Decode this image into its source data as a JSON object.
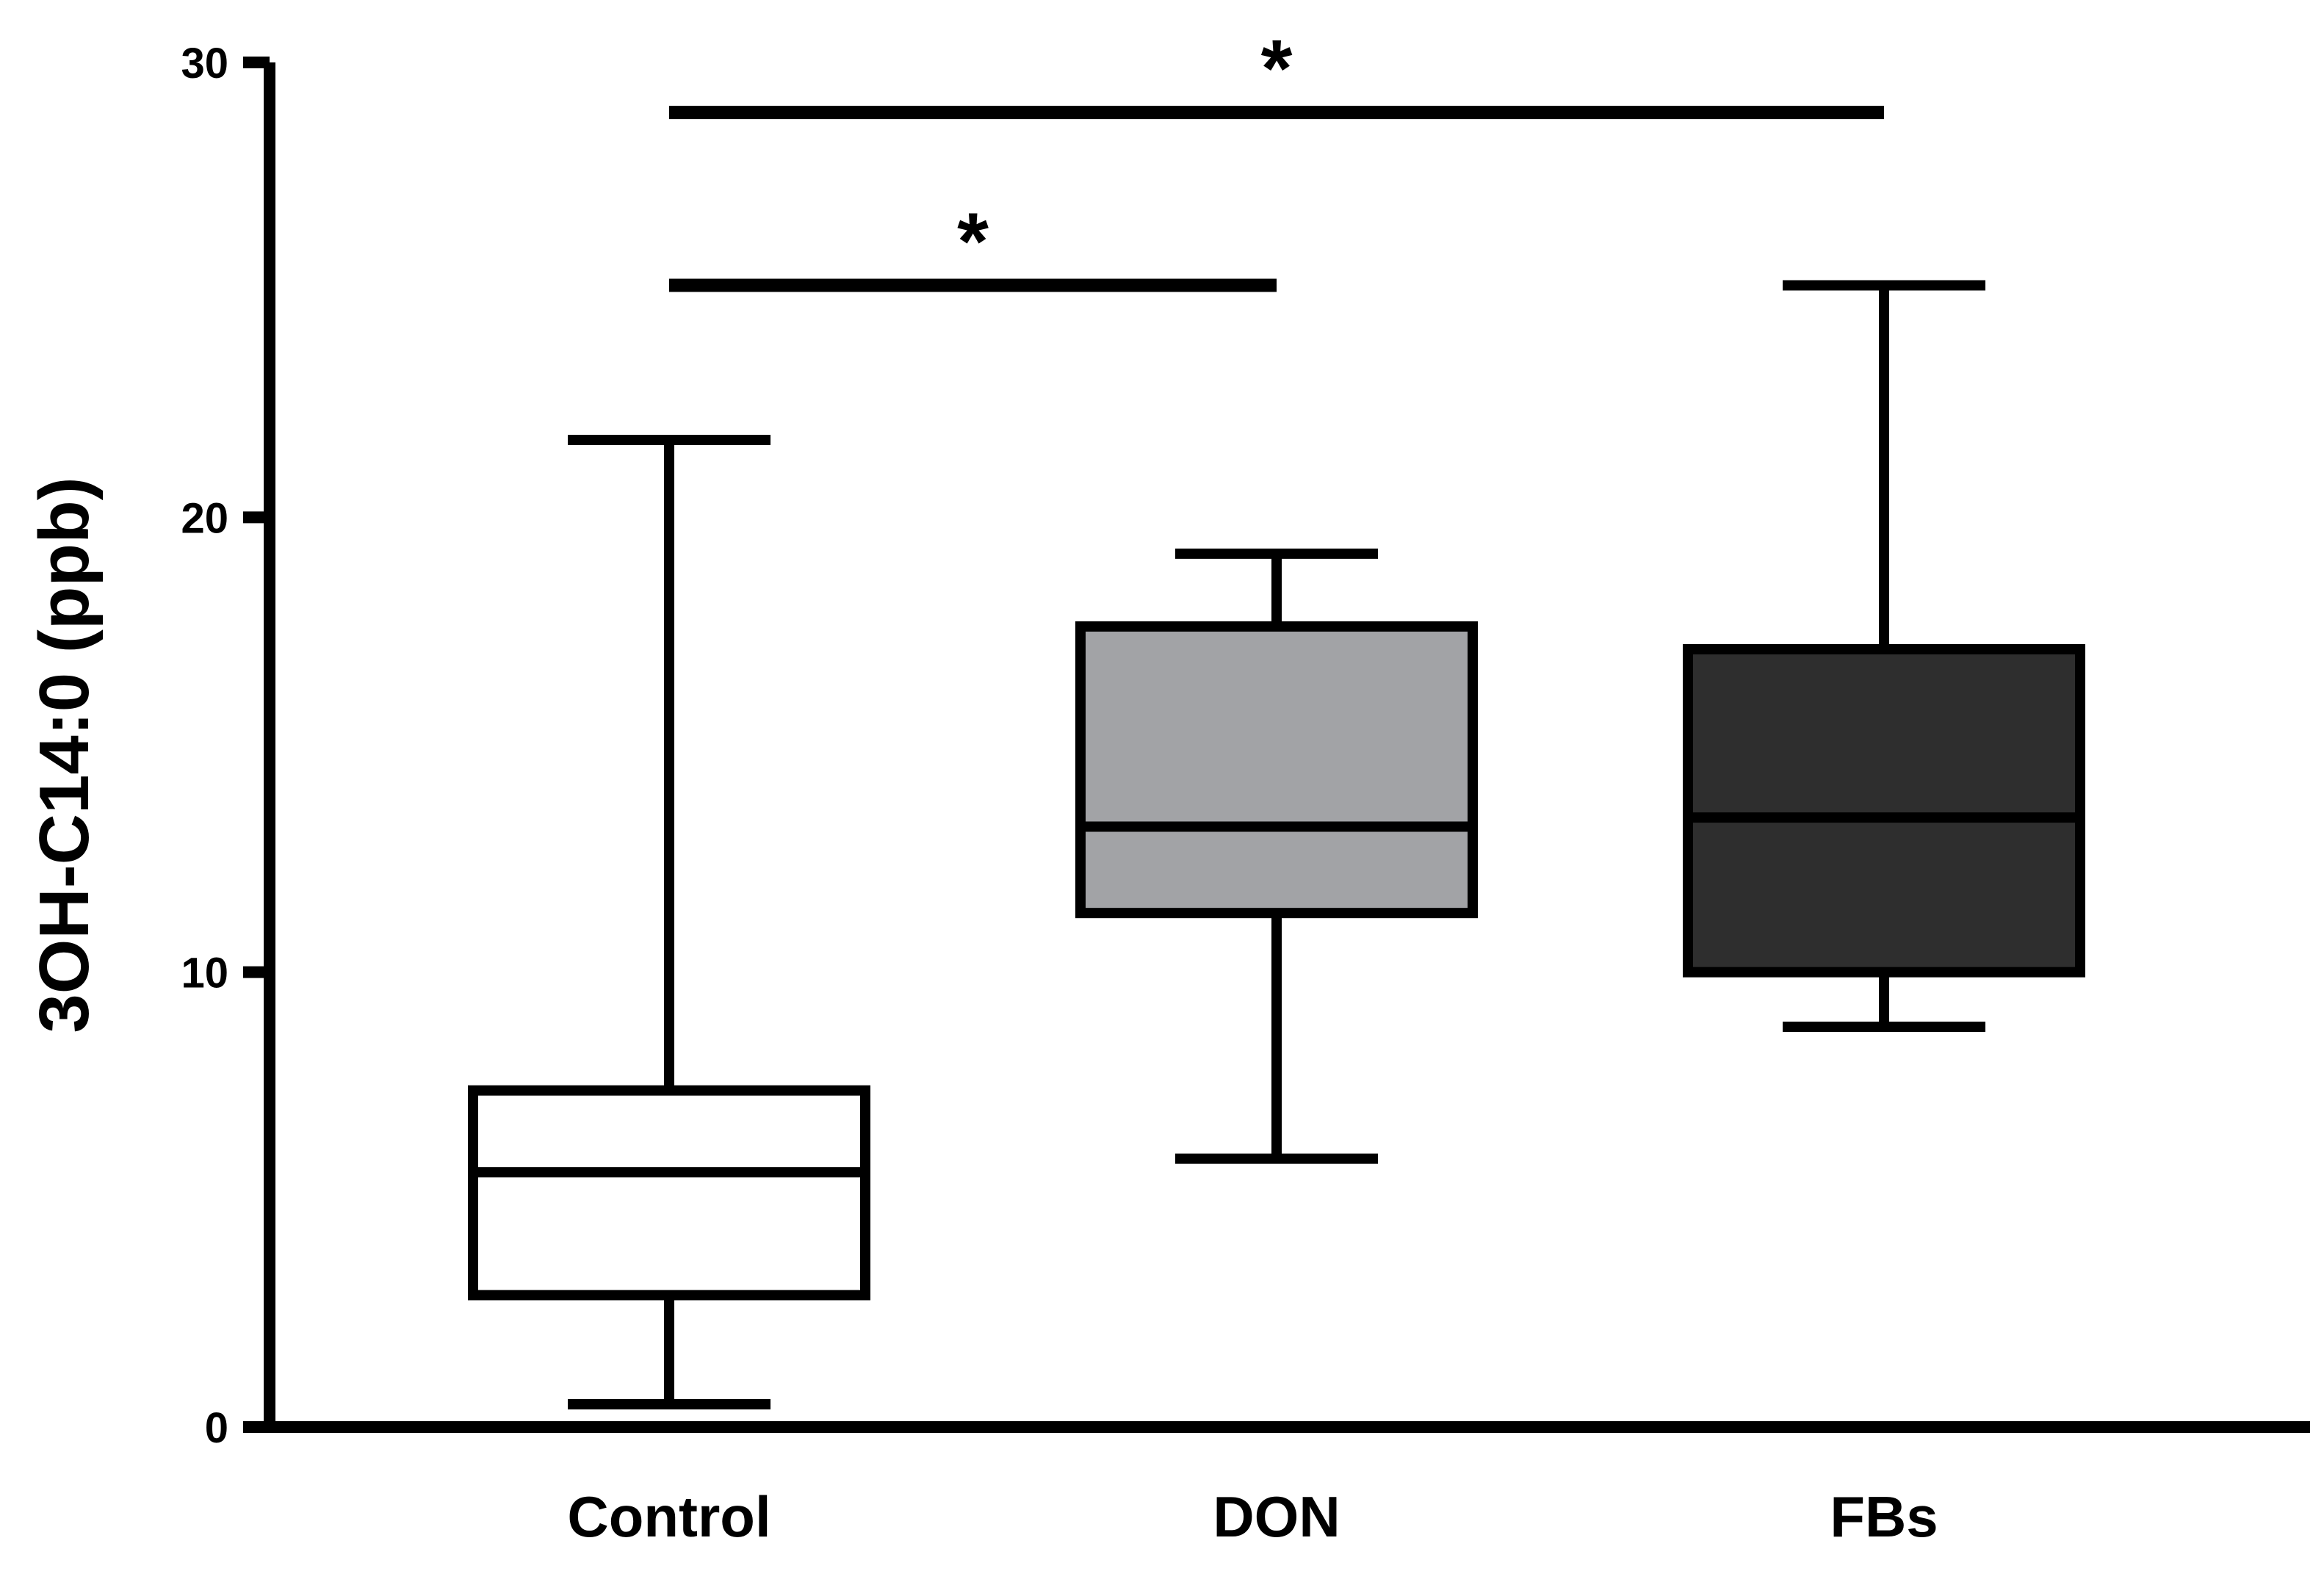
{
  "chart_data": {
    "type": "box",
    "ylabel": "3OH-C14:0 (ppb)",
    "xlabel": "",
    "title": "",
    "ylim": [
      0,
      30
    ],
    "yticks": [
      0,
      10,
      20,
      30
    ],
    "ytick_labels": [
      "0",
      "10",
      "20",
      "30"
    ],
    "grid": false,
    "legend": "none",
    "categories": [
      "Control",
      "DON",
      "FBs"
    ],
    "boxes": [
      {
        "category": "Control",
        "min": 0.5,
        "q1": 2.9,
        "median": 5.6,
        "q3": 7.4,
        "max": 21.7,
        "fill": "#ffffff"
      },
      {
        "category": "DON",
        "min": 5.9,
        "q1": 11.3,
        "median": 13.2,
        "q3": 17.6,
        "max": 19.2,
        "fill": "#a2a3a6"
      },
      {
        "category": "FBs",
        "min": 8.8,
        "q1": 10.0,
        "median": 13.4,
        "q3": 17.1,
        "max": 25.1,
        "fill": "#2e2e2e"
      }
    ],
    "significance": [
      {
        "from": "Control",
        "to": "DON",
        "y": 25.1,
        "label": "*"
      },
      {
        "from": "Control",
        "to": "FBs",
        "y": 28.9,
        "label": "*"
      }
    ]
  },
  "colors": {
    "axis": "#000000",
    "outline": "#000000"
  }
}
